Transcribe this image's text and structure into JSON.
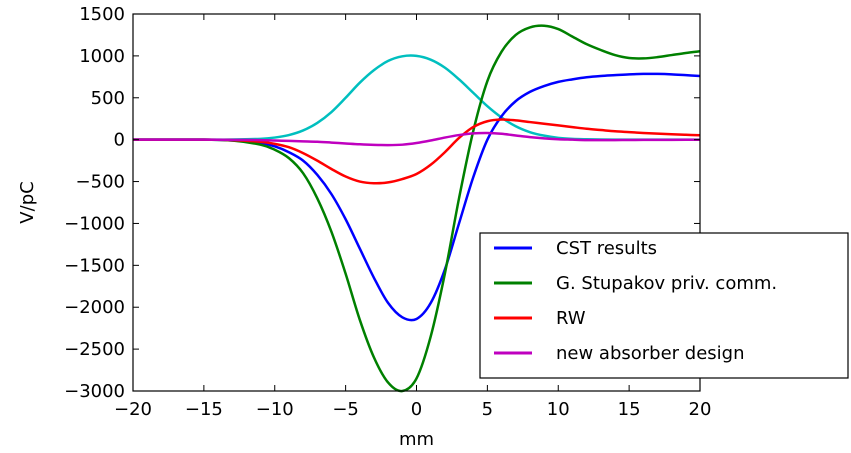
{
  "chart_data": {
    "type": "line",
    "xlabel": "mm",
    "ylabel": "V/pC",
    "xlim": [
      -20,
      20
    ],
    "ylim": [
      -3000,
      1500
    ],
    "xticks": [
      -20,
      -15,
      -10,
      -5,
      0,
      5,
      10,
      15,
      20
    ],
    "yticks": [
      -3000,
      -2500,
      -2000,
      -1500,
      -1000,
      -500,
      0,
      500,
      1000,
      1500
    ],
    "xtick_labels": [
      "−20",
      "−15",
      "−10",
      "−5",
      "0",
      "5",
      "10",
      "15",
      "20"
    ],
    "ytick_labels": [
      "−3000",
      "−2500",
      "−2000",
      "−1500",
      "−1000",
      "−500",
      "0",
      "500",
      "1000",
      "1500"
    ],
    "legend_position": "lower-right",
    "grid": false,
    "x": [
      -20,
      -15,
      -13,
      -11,
      -10,
      -9,
      -8,
      -7,
      -6,
      -5,
      -4,
      -3,
      -2,
      -1,
      0,
      1,
      2,
      3,
      4,
      5,
      6,
      7,
      8,
      9,
      10,
      11,
      12,
      13,
      14,
      15,
      16,
      17,
      18,
      19,
      20
    ],
    "series": [
      {
        "name": "CST results",
        "color": "#0000ff",
        "values": [
          0,
          0,
          -10,
          -40,
          -80,
          -150,
          -250,
          -420,
          -650,
          -950,
          -1300,
          -1650,
          -1950,
          -2120,
          -2140,
          -1950,
          -1550,
          -1000,
          -450,
          0,
          280,
          460,
          570,
          640,
          690,
          720,
          745,
          760,
          770,
          780,
          785,
          785,
          780,
          770,
          760
        ]
      },
      {
        "name": "G. Stupakov priv. comm.",
        "color": "#008000",
        "values": [
          0,
          0,
          -10,
          -60,
          -120,
          -220,
          -400,
          -700,
          -1100,
          -1600,
          -2150,
          -2600,
          -2900,
          -3000,
          -2850,
          -2350,
          -1600,
          -700,
          100,
          700,
          1050,
          1250,
          1340,
          1360,
          1320,
          1230,
          1140,
          1070,
          1010,
          975,
          970,
          985,
          1010,
          1035,
          1055
        ]
      },
      {
        "name": "RW",
        "color": "#ff0000",
        "values": [
          0,
          0,
          -5,
          -25,
          -50,
          -90,
          -160,
          -250,
          -350,
          -440,
          -500,
          -520,
          -510,
          -470,
          -410,
          -300,
          -150,
          20,
          150,
          220,
          240,
          230,
          210,
          190,
          170,
          150,
          130,
          115,
          100,
          90,
          80,
          72,
          64,
          58,
          52
        ]
      },
      {
        "name": "new absorber design",
        "color": "#bf00bf",
        "values": [
          0,
          0,
          -2,
          -5,
          -10,
          -15,
          -20,
          -25,
          -35,
          -45,
          -55,
          -62,
          -65,
          -60,
          -40,
          -10,
          25,
          55,
          75,
          80,
          70,
          50,
          30,
          15,
          5,
          0,
          -5,
          -5,
          -5,
          -4,
          -3,
          -2,
          -2,
          -1,
          -1
        ]
      },
      {
        "color": "#00bfbf",
        "values": [
          0,
          0,
          2,
          10,
          25,
          55,
          110,
          200,
          330,
          500,
          680,
          830,
          940,
          995,
          1000,
          955,
          860,
          720,
          560,
          400,
          265,
          160,
          90,
          48,
          22,
          10,
          5,
          2,
          1,
          0,
          0,
          0,
          0,
          0,
          0
        ]
      }
    ]
  }
}
